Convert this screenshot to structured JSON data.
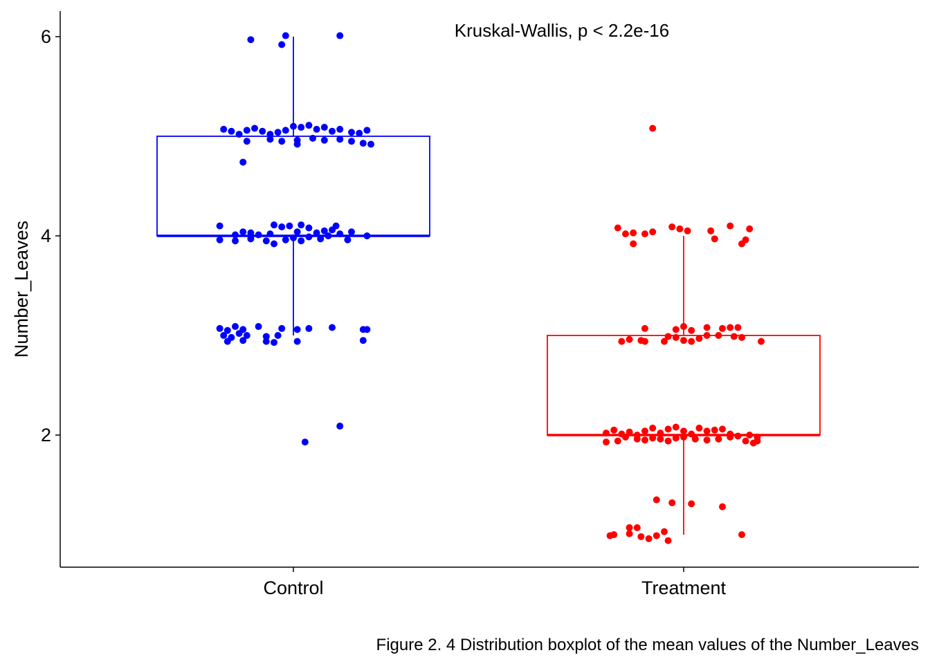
{
  "chart_data": {
    "type": "boxplot",
    "xlabel": "",
    "ylabel": "Number_Leaves",
    "ylim": [
      0.7,
      6.3
    ],
    "yticks": [
      2,
      4,
      6
    ],
    "categories": [
      "Control",
      "Treatment"
    ],
    "annotation": "Kruskal-Wallis, p < 2.2e-16",
    "caption": "Figure 2. 4 Distribution boxplot of the mean values of the Number_Leaves",
    "series": [
      {
        "category": "Control",
        "color": "#0000FF",
        "box": {
          "min": 3,
          "q1": 4,
          "median": 4,
          "q3": 5,
          "max": 6
        },
        "points": [
          {
            "x": -0.11,
            "y": 5.97
          },
          {
            "x": -0.03,
            "y": 5.92
          },
          {
            "x": -0.02,
            "y": 6.01
          },
          {
            "x": 0.12,
            "y": 6.01
          },
          {
            "x": -0.18,
            "y": 5.07
          },
          {
            "x": -0.16,
            "y": 5.05
          },
          {
            "x": -0.14,
            "y": 5.02
          },
          {
            "x": -0.12,
            "y": 5.06
          },
          {
            "x": -0.1,
            "y": 5.08
          },
          {
            "x": -0.08,
            "y": 5.05
          },
          {
            "x": -0.06,
            "y": 5.02
          },
          {
            "x": -0.04,
            "y": 5.04
          },
          {
            "x": -0.02,
            "y": 5.06
          },
          {
            "x": 0.0,
            "y": 5.1
          },
          {
            "x": 0.02,
            "y": 5.09
          },
          {
            "x": 0.04,
            "y": 5.11
          },
          {
            "x": 0.06,
            "y": 5.07
          },
          {
            "x": 0.08,
            "y": 5.09
          },
          {
            "x": 0.1,
            "y": 5.05
          },
          {
            "x": 0.12,
            "y": 5.07
          },
          {
            "x": 0.15,
            "y": 5.04
          },
          {
            "x": 0.17,
            "y": 5.03
          },
          {
            "x": 0.19,
            "y": 5.06
          },
          {
            "x": -0.12,
            "y": 4.95
          },
          {
            "x": -0.06,
            "y": 4.97
          },
          {
            "x": -0.03,
            "y": 4.95
          },
          {
            "x": 0.01,
            "y": 4.96
          },
          {
            "x": 0.01,
            "y": 4.92
          },
          {
            "x": 0.05,
            "y": 4.98
          },
          {
            "x": 0.08,
            "y": 4.96
          },
          {
            "x": 0.12,
            "y": 4.97
          },
          {
            "x": 0.15,
            "y": 4.95
          },
          {
            "x": 0.18,
            "y": 4.93
          },
          {
            "x": 0.2,
            "y": 4.92
          },
          {
            "x": -0.13,
            "y": 4.74
          },
          {
            "x": -0.19,
            "y": 4.1
          },
          {
            "x": -0.15,
            "y": 4.01
          },
          {
            "x": -0.13,
            "y": 4.04
          },
          {
            "x": -0.11,
            "y": 4.03
          },
          {
            "x": -0.09,
            "y": 4.01
          },
          {
            "x": -0.06,
            "y": 4.02
          },
          {
            "x": -0.05,
            "y": 4.11
          },
          {
            "x": -0.03,
            "y": 4.09
          },
          {
            "x": -0.01,
            "y": 4.1
          },
          {
            "x": 0.01,
            "y": 4.04
          },
          {
            "x": 0.02,
            "y": 4.11
          },
          {
            "x": 0.04,
            "y": 4.08
          },
          {
            "x": 0.06,
            "y": 4.03
          },
          {
            "x": 0.08,
            "y": 4.05
          },
          {
            "x": 0.1,
            "y": 4.06
          },
          {
            "x": 0.11,
            "y": 4.1
          },
          {
            "x": 0.12,
            "y": 4.02
          },
          {
            "x": 0.15,
            "y": 4.04
          },
          {
            "x": 0.19,
            "y": 4.0
          },
          {
            "x": -0.19,
            "y": 3.96
          },
          {
            "x": -0.15,
            "y": 3.95
          },
          {
            "x": -0.11,
            "y": 3.97
          },
          {
            "x": -0.07,
            "y": 3.95
          },
          {
            "x": -0.05,
            "y": 3.92
          },
          {
            "x": -0.02,
            "y": 3.96
          },
          {
            "x": 0.0,
            "y": 3.98
          },
          {
            "x": 0.02,
            "y": 3.95
          },
          {
            "x": 0.04,
            "y": 3.99
          },
          {
            "x": 0.07,
            "y": 3.97
          },
          {
            "x": 0.09,
            "y": 4.0
          },
          {
            "x": 0.14,
            "y": 3.96
          },
          {
            "x": -0.19,
            "y": 3.07
          },
          {
            "x": -0.17,
            "y": 3.05
          },
          {
            "x": -0.15,
            "y": 3.09
          },
          {
            "x": -0.13,
            "y": 3.06
          },
          {
            "x": -0.09,
            "y": 3.09
          },
          {
            "x": -0.03,
            "y": 3.07
          },
          {
            "x": 0.01,
            "y": 3.06
          },
          {
            "x": 0.04,
            "y": 3.07
          },
          {
            "x": 0.1,
            "y": 3.08
          },
          {
            "x": 0.18,
            "y": 3.06
          },
          {
            "x": 0.19,
            "y": 3.06
          },
          {
            "x": -0.18,
            "y": 3.0
          },
          {
            "x": -0.16,
            "y": 2.98
          },
          {
            "x": -0.14,
            "y": 3.02
          },
          {
            "x": -0.12,
            "y": 3.0
          },
          {
            "x": -0.07,
            "y": 2.99
          },
          {
            "x": -0.04,
            "y": 3.0
          },
          {
            "x": -0.17,
            "y": 2.94
          },
          {
            "x": -0.13,
            "y": 2.95
          },
          {
            "x": -0.07,
            "y": 2.94
          },
          {
            "x": -0.05,
            "y": 2.93
          },
          {
            "x": 0.01,
            "y": 2.94
          },
          {
            "x": 0.18,
            "y": 2.95
          },
          {
            "x": 0.12,
            "y": 2.09
          },
          {
            "x": 0.03,
            "y": 1.93
          }
        ]
      },
      {
        "category": "Treatment",
        "color": "#FF0000",
        "box": {
          "min": 1,
          "q1": 2,
          "median": 2,
          "q3": 3,
          "max": 4
        },
        "points": [
          {
            "x": -0.08,
            "y": 5.08
          },
          {
            "x": -0.17,
            "y": 4.08
          },
          {
            "x": -0.15,
            "y": 4.02
          },
          {
            "x": -0.13,
            "y": 4.03
          },
          {
            "x": -0.1,
            "y": 4.02
          },
          {
            "x": -0.08,
            "y": 4.04
          },
          {
            "x": -0.03,
            "y": 4.09
          },
          {
            "x": -0.01,
            "y": 4.07
          },
          {
            "x": 0.01,
            "y": 4.05
          },
          {
            "x": 0.07,
            "y": 4.05
          },
          {
            "x": 0.12,
            "y": 4.1
          },
          {
            "x": 0.17,
            "y": 4.07
          },
          {
            "x": -0.13,
            "y": 3.92
          },
          {
            "x": 0.08,
            "y": 3.97
          },
          {
            "x": 0.16,
            "y": 3.96
          },
          {
            "x": 0.15,
            "y": 3.92
          },
          {
            "x": -0.16,
            "y": 2.94
          },
          {
            "x": -0.14,
            "y": 2.96
          },
          {
            "x": -0.11,
            "y": 2.95
          },
          {
            "x": -0.1,
            "y": 2.94
          },
          {
            "x": -0.05,
            "y": 2.94
          },
          {
            "x": -0.04,
            "y": 2.99
          },
          {
            "x": -0.02,
            "y": 2.98
          },
          {
            "x": 0.0,
            "y": 2.95
          },
          {
            "x": 0.02,
            "y": 2.94
          },
          {
            "x": 0.04,
            "y": 2.97
          },
          {
            "x": 0.06,
            "y": 3.0
          },
          {
            "x": 0.09,
            "y": 3.0
          },
          {
            "x": 0.13,
            "y": 2.99
          },
          {
            "x": 0.15,
            "y": 2.98
          },
          {
            "x": 0.2,
            "y": 2.94
          },
          {
            "x": -0.1,
            "y": 3.07
          },
          {
            "x": -0.02,
            "y": 3.06
          },
          {
            "x": 0.0,
            "y": 3.09
          },
          {
            "x": 0.02,
            "y": 3.05
          },
          {
            "x": 0.06,
            "y": 3.08
          },
          {
            "x": 0.1,
            "y": 3.07
          },
          {
            "x": 0.12,
            "y": 3.08
          },
          {
            "x": 0.14,
            "y": 3.08
          },
          {
            "x": -0.2,
            "y": 2.02
          },
          {
            "x": -0.18,
            "y": 2.05
          },
          {
            "x": -0.16,
            "y": 2.01
          },
          {
            "x": -0.14,
            "y": 2.03
          },
          {
            "x": -0.12,
            "y": 2.0
          },
          {
            "x": -0.1,
            "y": 2.04
          },
          {
            "x": -0.08,
            "y": 2.07
          },
          {
            "x": -0.06,
            "y": 2.02
          },
          {
            "x": -0.04,
            "y": 2.06
          },
          {
            "x": -0.02,
            "y": 2.08
          },
          {
            "x": 0.0,
            "y": 2.04
          },
          {
            "x": 0.02,
            "y": 2.01
          },
          {
            "x": 0.04,
            "y": 2.07
          },
          {
            "x": 0.06,
            "y": 2.04
          },
          {
            "x": 0.08,
            "y": 2.05
          },
          {
            "x": 0.1,
            "y": 2.06
          },
          {
            "x": 0.12,
            "y": 2.01
          },
          {
            "x": 0.14,
            "y": 1.99
          },
          {
            "x": 0.17,
            "y": 2.0
          },
          {
            "x": 0.19,
            "y": 1.98
          },
          {
            "x": -0.2,
            "y": 1.93
          },
          {
            "x": -0.17,
            "y": 1.94
          },
          {
            "x": -0.15,
            "y": 1.98
          },
          {
            "x": -0.12,
            "y": 1.96
          },
          {
            "x": -0.1,
            "y": 1.95
          },
          {
            "x": -0.08,
            "y": 1.97
          },
          {
            "x": -0.06,
            "y": 1.96
          },
          {
            "x": -0.04,
            "y": 1.94
          },
          {
            "x": -0.02,
            "y": 1.97
          },
          {
            "x": 0.0,
            "y": 1.98
          },
          {
            "x": 0.03,
            "y": 1.96
          },
          {
            "x": 0.06,
            "y": 1.95
          },
          {
            "x": 0.09,
            "y": 1.96
          },
          {
            "x": 0.12,
            "y": 1.98
          },
          {
            "x": 0.16,
            "y": 1.94
          },
          {
            "x": 0.18,
            "y": 1.92
          },
          {
            "x": 0.19,
            "y": 1.94
          },
          {
            "x": -0.07,
            "y": 1.35
          },
          {
            "x": -0.03,
            "y": 1.32
          },
          {
            "x": 0.02,
            "y": 1.31
          },
          {
            "x": 0.1,
            "y": 1.28
          },
          {
            "x": -0.19,
            "y": 0.99
          },
          {
            "x": -0.18,
            "y": 1.0
          },
          {
            "x": -0.14,
            "y": 1.01
          },
          {
            "x": -0.14,
            "y": 1.07
          },
          {
            "x": -0.12,
            "y": 1.07
          },
          {
            "x": -0.11,
            "y": 0.98
          },
          {
            "x": -0.09,
            "y": 0.96
          },
          {
            "x": -0.07,
            "y": 0.99
          },
          {
            "x": -0.05,
            "y": 1.03
          },
          {
            "x": -0.04,
            "y": 0.94
          },
          {
            "x": 0.15,
            "y": 1.0
          }
        ]
      }
    ]
  }
}
